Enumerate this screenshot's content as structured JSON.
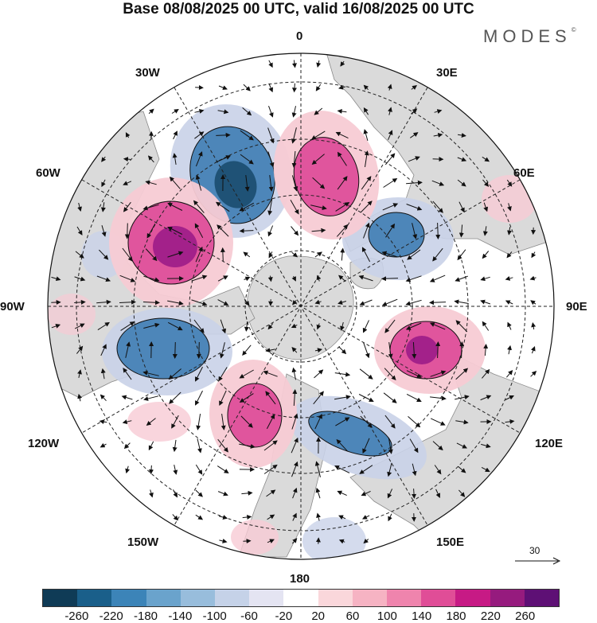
{
  "title": "Base 08/08/2025 00 UTC, valid 16/08/2025 00 UTC",
  "brand": "MODES",
  "brand_mark": "©",
  "longitude_labels": {
    "top": "0",
    "top_right": "30E",
    "upper_right": "60E",
    "right": "90E",
    "lower_right": "120E",
    "bottom_right": "150E",
    "bottom": "180",
    "bottom_left": "150W",
    "lower_left": "120W",
    "left": "90W",
    "upper_left": "60W",
    "top_left": "30W"
  },
  "reference_vector_label": "30",
  "colorbar": {
    "colors": [
      "#0f3b56",
      "#1a5f8a",
      "#3c84b8",
      "#6aa3cc",
      "#98bddc",
      "#c5d2e8",
      "#e4e4f2",
      "#ffffff",
      "#fad7db",
      "#f6b3c3",
      "#ef84ad",
      "#e04d97",
      "#c71a85",
      "#961b7e",
      "#5e1075"
    ],
    "tick_labels": [
      "-260",
      "-220",
      "-180",
      "-140",
      "-100",
      "-60",
      "-20",
      "20",
      "60",
      "100",
      "140",
      "180",
      "220",
      "260"
    ]
  },
  "field_colors": {
    "land": "#dadada",
    "land_edge": "#8a8a8a",
    "neg_strong": "#1f5276",
    "neg_mid": "#4d86b9",
    "neg_weak": "#c9d2e8",
    "pos_strong": "#a3218a",
    "pos_mid": "#e0559d",
    "pos_weak": "#f7cbd4"
  }
}
